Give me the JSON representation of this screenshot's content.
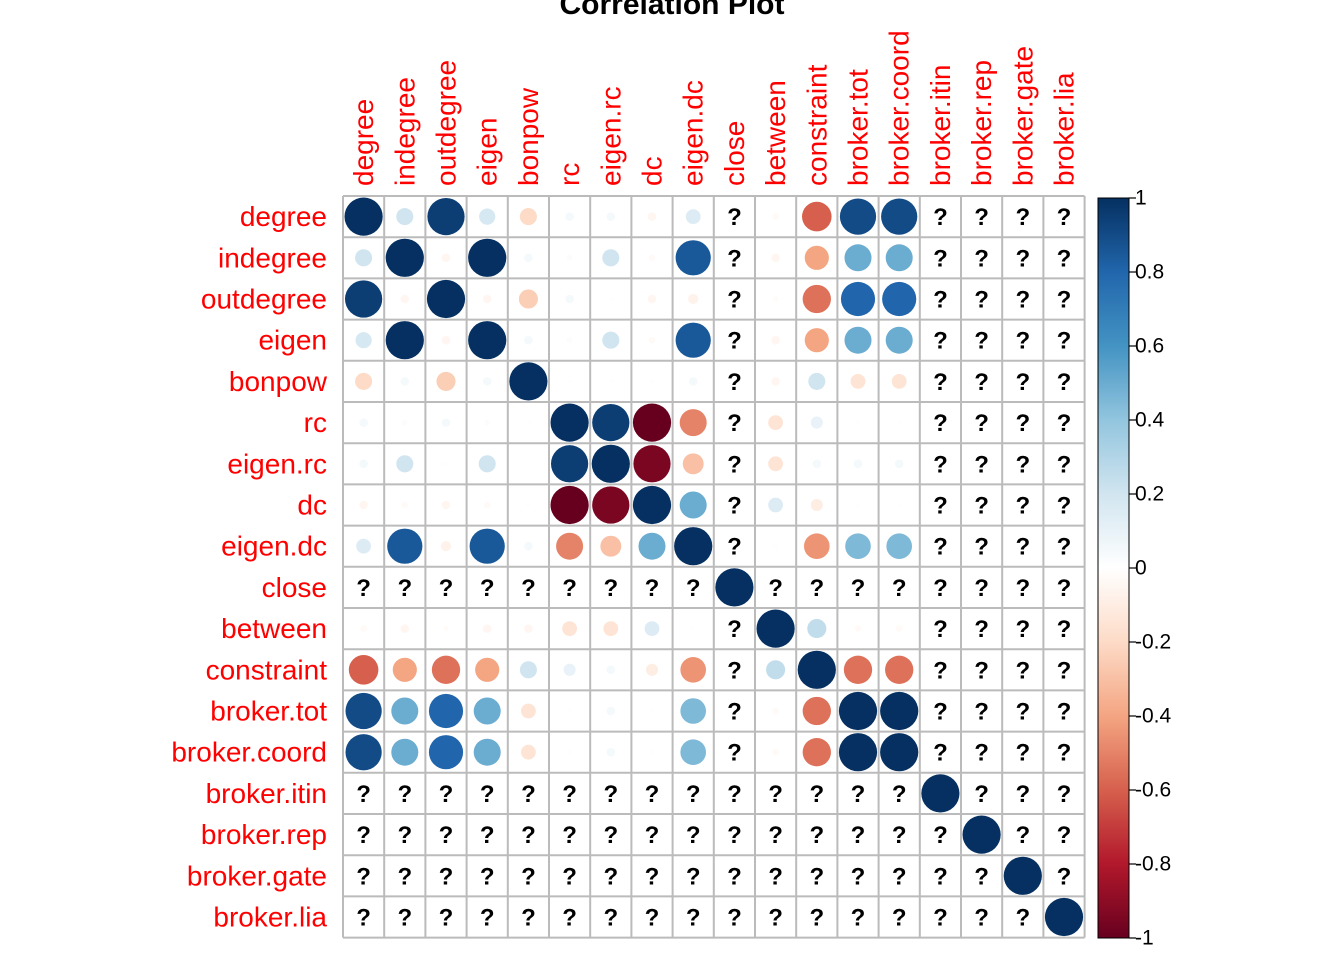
{
  "chart_data": {
    "type": "heatmap",
    "title": "Correlation Plot",
    "variables": [
      "degree",
      "indegree",
      "outdegree",
      "eigen",
      "bonpow",
      "rc",
      "eigen.rc",
      "dc",
      "eigen.dc",
      "close",
      "between",
      "constraint",
      "broker.tot",
      "broker.coord",
      "broker.itin",
      "broker.rep",
      "broker.gate",
      "broker.lia"
    ],
    "matrix": [
      [
        1,
        0.2,
        0.95,
        0.18,
        -0.2,
        0.05,
        0.05,
        -0.05,
        0.15,
        null,
        -0.03,
        -0.6,
        0.9,
        0.9,
        null,
        null,
        null,
        null
      ],
      [
        0.2,
        1,
        -0.05,
        1,
        0.05,
        0.02,
        0.2,
        -0.03,
        0.85,
        null,
        -0.05,
        -0.4,
        0.5,
        0.5,
        null,
        null,
        null,
        null
      ],
      [
        0.95,
        -0.05,
        1,
        -0.05,
        -0.25,
        0.05,
        0.01,
        -0.05,
        -0.07,
        null,
        -0.02,
        -0.55,
        0.8,
        0.8,
        null,
        null,
        null,
        null
      ],
      [
        0.18,
        1,
        -0.05,
        1,
        0.05,
        0.02,
        0.2,
        -0.03,
        0.85,
        null,
        -0.05,
        -0.4,
        0.5,
        0.5,
        null,
        null,
        null,
        null
      ],
      [
        -0.2,
        0.05,
        -0.25,
        0.05,
        1,
        0.01,
        0.01,
        0.01,
        0.05,
        null,
        -0.05,
        0.2,
        -0.15,
        -0.15,
        null,
        null,
        null,
        null
      ],
      [
        0.05,
        0.02,
        0.05,
        0.02,
        0.01,
        1,
        0.95,
        -1,
        -0.5,
        null,
        -0.15,
        0.1,
        0.01,
        0.01,
        null,
        null,
        null,
        null
      ],
      [
        0.05,
        0.2,
        0.01,
        0.2,
        0.01,
        0.95,
        1,
        -0.95,
        -0.3,
        null,
        -0.15,
        0.05,
        0.05,
        0.05,
        null,
        null,
        null,
        null
      ],
      [
        -0.05,
        -0.03,
        -0.05,
        -0.03,
        0.01,
        -1,
        -0.95,
        1,
        0.5,
        null,
        0.15,
        -0.1,
        0.01,
        0.01,
        null,
        null,
        null,
        null
      ],
      [
        0.15,
        0.85,
        -0.07,
        0.85,
        0.05,
        -0.5,
        -0.3,
        0.5,
        1,
        null,
        0.01,
        -0.45,
        0.45,
        0.45,
        null,
        null,
        null,
        null
      ],
      [
        null,
        null,
        null,
        null,
        null,
        null,
        null,
        null,
        null,
        1,
        null,
        null,
        null,
        null,
        null,
        null,
        null,
        null
      ],
      [
        -0.03,
        -0.05,
        -0.02,
        -0.05,
        -0.05,
        -0.15,
        -0.15,
        0.15,
        0.01,
        null,
        1,
        0.25,
        -0.03,
        -0.03,
        null,
        null,
        null,
        null
      ],
      [
        -0.6,
        -0.4,
        -0.55,
        -0.4,
        0.2,
        0.1,
        0.05,
        -0.1,
        -0.45,
        null,
        0.25,
        1,
        -0.55,
        -0.55,
        null,
        null,
        null,
        null
      ],
      [
        0.9,
        0.5,
        0.8,
        0.5,
        -0.15,
        0.01,
        0.05,
        0.01,
        0.45,
        null,
        -0.03,
        -0.55,
        1,
        1,
        null,
        null,
        null,
        null
      ],
      [
        0.9,
        0.5,
        0.8,
        0.5,
        -0.15,
        0.01,
        0.05,
        0.01,
        0.45,
        null,
        -0.03,
        -0.55,
        1,
        1,
        null,
        null,
        null,
        null
      ],
      [
        null,
        null,
        null,
        null,
        null,
        null,
        null,
        null,
        null,
        null,
        null,
        null,
        null,
        null,
        1,
        null,
        null,
        null
      ],
      [
        null,
        null,
        null,
        null,
        null,
        null,
        null,
        null,
        null,
        null,
        null,
        null,
        null,
        null,
        null,
        1,
        null,
        null
      ],
      [
        null,
        null,
        null,
        null,
        null,
        null,
        null,
        null,
        null,
        null,
        null,
        null,
        null,
        null,
        null,
        null,
        1,
        null
      ],
      [
        null,
        null,
        null,
        null,
        null,
        null,
        null,
        null,
        null,
        null,
        null,
        null,
        null,
        null,
        null,
        null,
        null,
        1
      ]
    ],
    "missing_symbol": "?",
    "colorbar": {
      "range": [
        -1,
        1
      ],
      "ticks": [
        "1",
        "0.8",
        "0.6",
        "0.4",
        "0.2",
        "0",
        "-0.2",
        "-0.4",
        "-0.6",
        "-0.8",
        "-1"
      ],
      "placement": "right"
    },
    "colors": {
      "label": "#FF0000",
      "grid": "#BBBBBB",
      "scale": [
        "#67001F",
        "#B2182B",
        "#D6604D",
        "#F4A582",
        "#FDDBC7",
        "#FFFFFF",
        "#D1E5F0",
        "#92C5DE",
        "#4393C3",
        "#2166AC",
        "#053061"
      ]
    }
  }
}
